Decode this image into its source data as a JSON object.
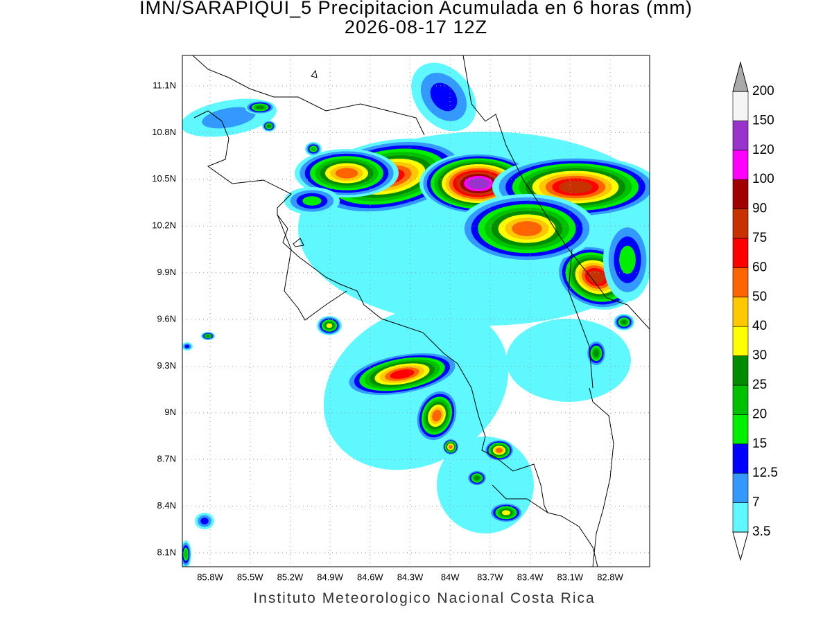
{
  "header": {
    "title": "IMN/SARAPIQUI_5 Precipitacion Acumulada en 6 horas (mm)",
    "subtitle": "2026-08-17 12Z"
  },
  "map": {
    "lon_labels": [
      "85.8W",
      "85.5W",
      "85.2W",
      "84.9W",
      "84.6W",
      "84.3W",
      "84W",
      "83.7W",
      "83.4W",
      "83.1W",
      "82.8W"
    ],
    "lat_labels": [
      "11.1N",
      "10.8N",
      "10.5N",
      "10.2N",
      "9.9N",
      "9.6N",
      "9.3N",
      "9N",
      "8.7N",
      "8.4N",
      "8.1N"
    ]
  },
  "colorbar": {
    "labels": [
      "3.5",
      "7",
      "12.5",
      "15",
      "20",
      "25",
      "30",
      "40",
      "50",
      "60",
      "75",
      "90",
      "100",
      "120",
      "150",
      "200"
    ],
    "colors": [
      "#5ff8ff",
      "#3399ff",
      "#0000ff",
      "#00ee00",
      "#00c000",
      "#008c00",
      "#ffff00",
      "#ffc800",
      "#ff6400",
      "#ff0000",
      "#c83200",
      "#a00000",
      "#ff00ff",
      "#9933cc",
      "#f5f5f5"
    ],
    "below_color": "#ffffff",
    "above_color": "#aaaaaa"
  },
  "footer": {
    "credit": "Instituto Meteorologico Nacional Costa Rica"
  }
}
